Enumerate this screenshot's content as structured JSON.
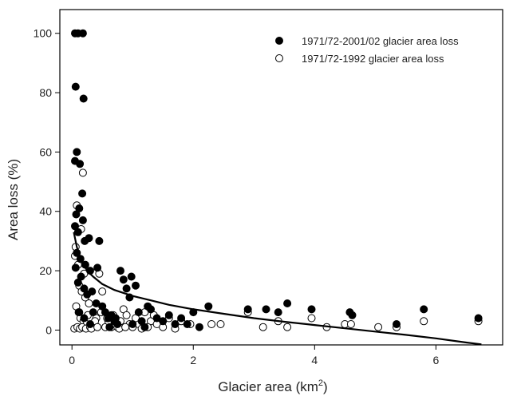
{
  "chart_data": {
    "type": "scatter",
    "xlabel_main": "Glacier area (km",
    "xlabel_sup": "2",
    "xlabel_close": ")",
    "ylabel": "Area loss (%)",
    "xlim": [
      -0.2,
      7.1
    ],
    "ylim": [
      -5,
      108
    ],
    "x_ticks": [
      0,
      2,
      4,
      6
    ],
    "y_ticks": [
      0,
      20,
      40,
      60,
      80,
      100
    ],
    "x_tick_labels": [
      "0",
      "2",
      "4",
      "6"
    ],
    "y_tick_labels": [
      "0",
      "20",
      "40",
      "60",
      "80",
      "100"
    ],
    "legend_position": "top-right",
    "series": [
      {
        "name": "1971/72-2001/02 glacier area loss",
        "marker": "filled-circle",
        "color": "#000000",
        "points": [
          [
            0.05,
            100
          ],
          [
            0.1,
            100
          ],
          [
            0.18,
            100
          ],
          [
            0.06,
            82
          ],
          [
            0.19,
            78
          ],
          [
            0.08,
            60
          ],
          [
            0.05,
            57
          ],
          [
            0.13,
            56
          ],
          [
            0.17,
            46
          ],
          [
            0.07,
            39
          ],
          [
            0.12,
            41
          ],
          [
            0.18,
            37
          ],
          [
            0.05,
            35
          ],
          [
            0.1,
            33
          ],
          [
            0.21,
            30
          ],
          [
            0.28,
            31
          ],
          [
            0.45,
            30
          ],
          [
            0.08,
            26
          ],
          [
            0.14,
            24
          ],
          [
            0.22,
            22
          ],
          [
            0.3,
            20
          ],
          [
            0.42,
            21
          ],
          [
            0.06,
            21
          ],
          [
            0.1,
            16
          ],
          [
            0.15,
            18
          ],
          [
            0.2,
            14
          ],
          [
            0.25,
            12
          ],
          [
            0.33,
            13
          ],
          [
            0.4,
            9
          ],
          [
            0.5,
            8
          ],
          [
            0.55,
            6
          ],
          [
            0.6,
            4
          ],
          [
            0.65,
            5
          ],
          [
            0.7,
            3
          ],
          [
            0.75,
            2
          ],
          [
            0.8,
            20
          ],
          [
            0.85,
            17
          ],
          [
            0.9,
            14
          ],
          [
            0.95,
            11
          ],
          [
            0.98,
            18
          ],
          [
            1.05,
            15
          ],
          [
            1.1,
            6
          ],
          [
            1.15,
            3
          ],
          [
            1.2,
            1
          ],
          [
            1.25,
            8
          ],
          [
            1.3,
            7
          ],
          [
            1.4,
            4
          ],
          [
            1.5,
            3
          ],
          [
            1.6,
            5
          ],
          [
            1.7,
            2
          ],
          [
            1.8,
            4
          ],
          [
            1.9,
            2
          ],
          [
            2.0,
            6
          ],
          [
            2.1,
            1
          ],
          [
            2.25,
            8
          ],
          [
            2.9,
            7
          ],
          [
            3.2,
            7
          ],
          [
            3.4,
            6
          ],
          [
            3.55,
            9
          ],
          [
            3.95,
            7
          ],
          [
            4.58,
            6
          ],
          [
            4.62,
            5
          ],
          [
            5.35,
            2
          ],
          [
            5.8,
            7
          ],
          [
            6.7,
            4
          ],
          [
            0.12,
            6
          ],
          [
            0.2,
            4
          ],
          [
            0.3,
            2
          ],
          [
            0.35,
            6
          ],
          [
            0.62,
            1
          ],
          [
            0.72,
            4
          ],
          [
            1.0,
            2
          ]
        ]
      },
      {
        "name": "1971/72-1992 glacier area loss",
        "marker": "open-circle",
        "color": "#000000",
        "points": [
          [
            0.18,
            53
          ],
          [
            0.08,
            42
          ],
          [
            0.15,
            34
          ],
          [
            0.06,
            28
          ],
          [
            0.05,
            25
          ],
          [
            0.1,
            22
          ],
          [
            0.2,
            19
          ],
          [
            0.12,
            15
          ],
          [
            0.16,
            13
          ],
          [
            0.22,
            11
          ],
          [
            0.28,
            9
          ],
          [
            0.07,
            8
          ],
          [
            0.11,
            6
          ],
          [
            0.14,
            4
          ],
          [
            0.19,
            3
          ],
          [
            0.24,
            2
          ],
          [
            0.04,
            0.5
          ],
          [
            0.09,
            1
          ],
          [
            0.13,
            0.5
          ],
          [
            0.17,
            1
          ],
          [
            0.23,
            0.5
          ],
          [
            0.3,
            1
          ],
          [
            0.35,
            2
          ],
          [
            0.4,
            4
          ],
          [
            0.45,
            19
          ],
          [
            0.5,
            13
          ],
          [
            0.55,
            1
          ],
          [
            0.6,
            3
          ],
          [
            0.65,
            1
          ],
          [
            0.7,
            2
          ],
          [
            0.75,
            1
          ],
          [
            0.8,
            3
          ],
          [
            0.85,
            7
          ],
          [
            0.9,
            5
          ],
          [
            0.95,
            2
          ],
          [
            1.0,
            1
          ],
          [
            1.1,
            2
          ],
          [
            1.2,
            6
          ],
          [
            1.3,
            3
          ],
          [
            1.4,
            2
          ],
          [
            1.5,
            1
          ],
          [
            1.6,
            4
          ],
          [
            1.7,
            0.5
          ],
          [
            1.8,
            3
          ],
          [
            1.95,
            2
          ],
          [
            2.3,
            2
          ],
          [
            2.45,
            2
          ],
          [
            2.9,
            6
          ],
          [
            3.15,
            1
          ],
          [
            3.4,
            3
          ],
          [
            3.55,
            1
          ],
          [
            3.95,
            4
          ],
          [
            4.2,
            1
          ],
          [
            4.5,
            2
          ],
          [
            4.6,
            2
          ],
          [
            5.05,
            1
          ],
          [
            5.35,
            1
          ],
          [
            5.8,
            3
          ],
          [
            6.7,
            3
          ],
          [
            0.26,
            5
          ],
          [
            0.32,
            0.5
          ],
          [
            0.38,
            3
          ],
          [
            0.42,
            1
          ],
          [
            0.48,
            6
          ],
          [
            0.58,
            4
          ],
          [
            0.68,
            5
          ],
          [
            0.78,
            0.5
          ],
          [
            0.88,
            1
          ],
          [
            1.05,
            4
          ],
          [
            1.15,
            0.5
          ],
          [
            1.25,
            1
          ],
          [
            1.35,
            5
          ]
        ]
      }
    ],
    "fit_line": {
      "style": "solid",
      "color": "#000000",
      "points": [
        [
          0.03,
          33
        ],
        [
          0.05,
          31
        ],
        [
          0.08,
          28
        ],
        [
          0.12,
          25
        ],
        [
          0.18,
          22.5
        ],
        [
          0.25,
          20
        ],
        [
          0.35,
          18
        ],
        [
          0.5,
          15.5
        ],
        [
          0.7,
          13.5
        ],
        [
          1.0,
          11.5
        ],
        [
          1.3,
          10
        ],
        [
          1.6,
          8.5
        ],
        [
          2.0,
          7
        ],
        [
          2.5,
          5.5
        ],
        [
          3.0,
          4
        ],
        [
          3.5,
          2.8
        ],
        [
          4.0,
          1.7
        ],
        [
          4.5,
          0.6
        ],
        [
          5.0,
          -0.5
        ],
        [
          5.5,
          -1.6
        ],
        [
          6.0,
          -2.8
        ],
        [
          6.5,
          -4.2
        ],
        [
          6.75,
          -4.8
        ]
      ]
    }
  }
}
